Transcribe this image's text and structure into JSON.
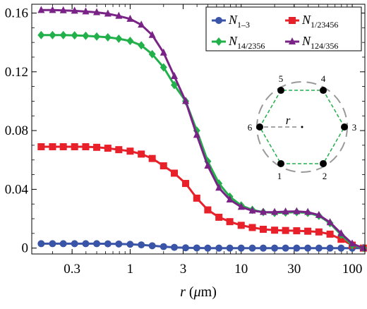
{
  "chart_data": {
    "type": "line",
    "xlabel": "r (μm)",
    "ylabel": "",
    "x_scale": "log",
    "xlim": [
      0.13,
      130
    ],
    "ylim": [
      -0.004,
      0.166
    ],
    "x_ticks": [
      {
        "value": 0.3,
        "label": "0.3"
      },
      {
        "value": 1,
        "label": "1"
      },
      {
        "value": 3,
        "label": "3"
      },
      {
        "value": 10,
        "label": "10"
      },
      {
        "value": 30,
        "label": "30"
      },
      {
        "value": 100,
        "label": "100"
      }
    ],
    "y_ticks": [
      {
        "value": 0,
        "label": "0"
      },
      {
        "value": 0.04,
        "label": "0.04"
      },
      {
        "value": 0.08,
        "label": "0.08"
      },
      {
        "value": 0.12,
        "label": "0.12"
      },
      {
        "value": 0.16,
        "label": "0.16"
      }
    ],
    "legend_position": "top-right",
    "x": [
      0.158,
      0.2,
      0.25,
      0.316,
      0.398,
      0.5,
      0.63,
      0.79,
      1.0,
      1.26,
      1.58,
      2.0,
      2.5,
      3.16,
      3.98,
      5.0,
      6.3,
      7.9,
      10.0,
      12.6,
      15.8,
      20.0,
      25.1,
      31.6,
      39.8,
      50.1,
      63.1,
      79.4,
      100,
      126
    ],
    "series": [
      {
        "name": "N1–3",
        "name_main": "N",
        "name_sub": "1–3",
        "color": "#3a55a8",
        "marker": "circle",
        "values": [
          0.003,
          0.003,
          0.003,
          0.003,
          0.003,
          0.003,
          0.0029,
          0.0028,
          0.0026,
          0.0022,
          0.0016,
          0.001,
          0.0005,
          0.0002,
          0.0001,
          0.0,
          0.0,
          0.0,
          0.0,
          0.0,
          0.0,
          0.0,
          0.0,
          0.0,
          0.0,
          0.0,
          0.0,
          0.0,
          0.0,
          0.0
        ]
      },
      {
        "name": "N1/23456",
        "name_main": "N",
        "name_sub": "1/23456",
        "color": "#e8202a",
        "marker": "square",
        "values": [
          0.069,
          0.069,
          0.069,
          0.069,
          0.069,
          0.0686,
          0.068,
          0.067,
          0.066,
          0.064,
          0.061,
          0.056,
          0.051,
          0.044,
          0.034,
          0.026,
          0.021,
          0.018,
          0.0155,
          0.014,
          0.0128,
          0.0122,
          0.012,
          0.0118,
          0.0115,
          0.011,
          0.0095,
          0.006,
          0.002,
          0.0
        ]
      },
      {
        "name": "N14/2356",
        "name_main": "N",
        "name_sub": "14/2356",
        "color": "#22b04b",
        "marker": "diamond",
        "values": [
          0.145,
          0.145,
          0.145,
          0.1448,
          0.1445,
          0.144,
          0.1435,
          0.1425,
          0.141,
          0.138,
          0.132,
          0.123,
          0.111,
          0.1,
          0.08,
          0.059,
          0.044,
          0.035,
          0.029,
          0.026,
          0.0245,
          0.024,
          0.0242,
          0.0245,
          0.024,
          0.022,
          0.017,
          0.009,
          0.002,
          0.0
        ]
      },
      {
        "name": "N124/356",
        "name_main": "N",
        "name_sub": "124/356",
        "color": "#7a2386",
        "marker": "triangle",
        "values": [
          0.162,
          0.162,
          0.1618,
          0.1615,
          0.161,
          0.1605,
          0.1595,
          0.158,
          0.156,
          0.152,
          0.145,
          0.133,
          0.117,
          0.1,
          0.077,
          0.056,
          0.041,
          0.033,
          0.028,
          0.0255,
          0.0245,
          0.0245,
          0.0248,
          0.025,
          0.0245,
          0.0225,
          0.0175,
          0.01,
          0.003,
          0.0
        ]
      }
    ],
    "inset": {
      "labels": [
        "1",
        "2",
        "3",
        "4",
        "5",
        "6"
      ],
      "radius_label": "r"
    }
  }
}
